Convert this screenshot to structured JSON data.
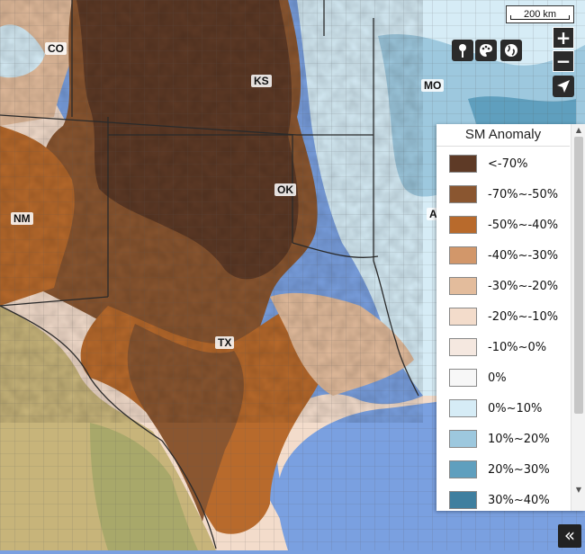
{
  "map": {
    "scale_label": "200 km",
    "state_labels": [
      {
        "id": "co",
        "text": "CO"
      },
      {
        "id": "ks",
        "text": "KS"
      },
      {
        "id": "mo",
        "text": "MO"
      },
      {
        "id": "ok",
        "text": "OK"
      },
      {
        "id": "nm",
        "text": "NM"
      },
      {
        "id": "tx",
        "text": "TX"
      },
      {
        "id": "ar",
        "text": "A"
      }
    ],
    "controls": {
      "zoom_in": "+",
      "zoom_out": "−",
      "locate_icon": "navigation-arrow-icon",
      "tool_icons": [
        "pin-icon",
        "palette-icon",
        "globe-icon"
      ]
    },
    "colors": {
      "lt70": "#5e3a26",
      "m70_50": "#8a5630",
      "m50_40": "#b86a2c",
      "m40_30": "#d2976a",
      "m30_20": "#e3bc9c",
      "m20_10": "#f3dccb",
      "m10_0": "#f5e8e0",
      "zero": "#f7f7f7",
      "p0_10": "#d6ecf6",
      "p10_20": "#9dc8de",
      "p20_30": "#5f9fbe",
      "p30_40": "#3f7f9f",
      "water": "#7aa0e0",
      "terrain": "#c7b47a",
      "county_line": "#6b6b6b",
      "state_line": "#2a2a2a"
    }
  },
  "legend": {
    "title": "SM Anomaly",
    "items": [
      {
        "label": "<-70%",
        "color": "#5e3a26"
      },
      {
        "label": "-70%~-50%",
        "color": "#8a5630"
      },
      {
        "label": "-50%~-40%",
        "color": "#b86a2c"
      },
      {
        "label": "-40%~-30%",
        "color": "#d2976a"
      },
      {
        "label": "-30%~-20%",
        "color": "#e3bc9c"
      },
      {
        "label": "-20%~-10%",
        "color": "#f3dccb"
      },
      {
        "label": "-10%~0%",
        "color": "#f5e8e0"
      },
      {
        "label": "0%",
        "color": "#f7f7f7"
      },
      {
        "label": "0%~10%",
        "color": "#d6ecf6"
      },
      {
        "label": "10%~20%",
        "color": "#9dc8de"
      },
      {
        "label": "20%~30%",
        "color": "#5f9fbe"
      },
      {
        "label": "30%~40%",
        "color": "#3f7f9f"
      }
    ]
  },
  "collapse_button": "«"
}
